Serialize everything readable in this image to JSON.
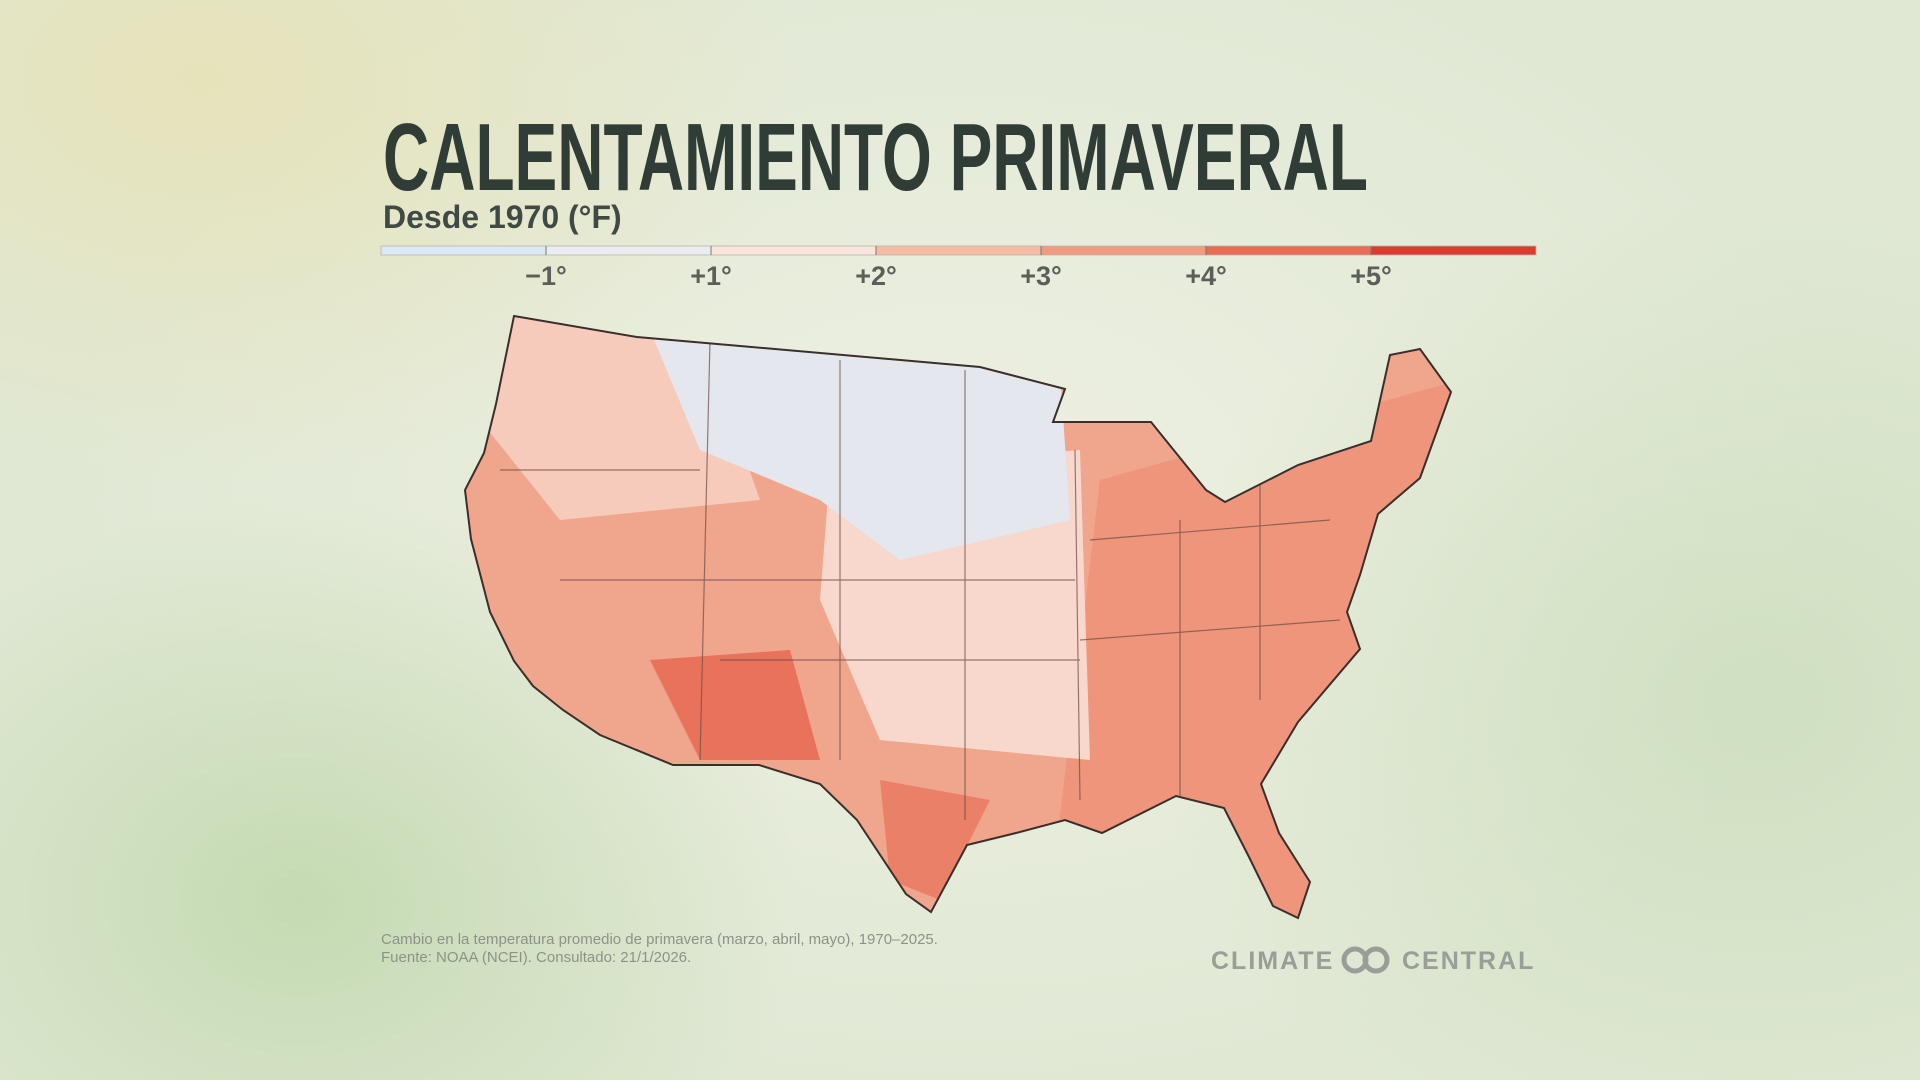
{
  "header": {
    "title": "CALENTAMIENTO PRIMAVERAL",
    "subtitle": "Desde 1970 (°F)"
  },
  "legend": {
    "colors": [
      "#dce9f4",
      "#e9edf2",
      "#fbe4db",
      "#f6bba3",
      "#f09a80",
      "#e96c54",
      "#dc3b30"
    ],
    "labels": [
      "−1°",
      "+1°",
      "+2°",
      "+3°",
      "+4°",
      "+5°"
    ]
  },
  "footer": {
    "note": [
      "Cambio en la temperatura promedio de primavera (marzo, abril, mayo), 1970–2025.",
      "Fuente: NOAA (NCEI). Consultado: 21/1/2026."
    ],
    "logo": [
      "CLIMATE",
      "CENTRAL"
    ]
  }
}
